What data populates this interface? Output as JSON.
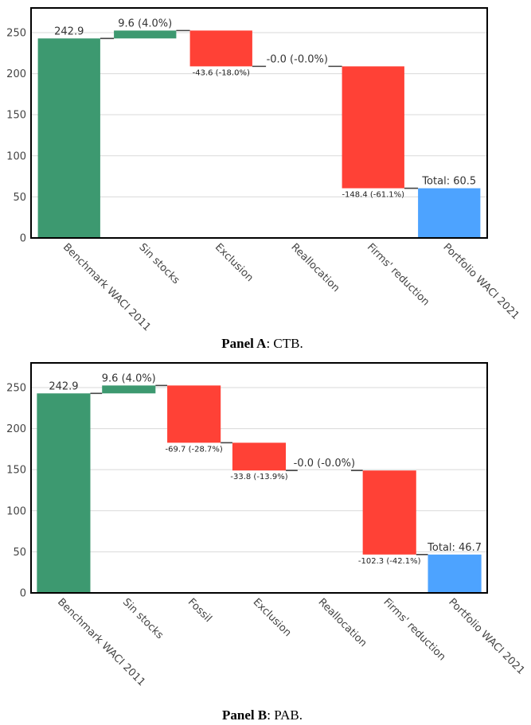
{
  "chart_data": [
    {
      "type": "waterfall",
      "panel_label": "Panel A",
      "panel_name": "CTB.",
      "ylim": [
        0,
        280
      ],
      "yticks": [
        0,
        50,
        100,
        150,
        200,
        250
      ],
      "grid": true,
      "bars": [
        {
          "category": "Benchmark WACI 2011",
          "kind": "total",
          "base": 0,
          "top": 242.9,
          "label": "242.9",
          "label_pos": "above"
        },
        {
          "category": "Sin stocks",
          "kind": "increase",
          "base": 242.9,
          "top": 252.5,
          "label": "9.6 (4.0%)",
          "label_pos": "above"
        },
        {
          "category": "Exclusion",
          "kind": "decrease",
          "base": 208.9,
          "top": 252.5,
          "label": "-43.6 (-18.0%)",
          "label_pos": "below"
        },
        {
          "category": "Reallocation",
          "kind": "decrease",
          "base": 208.9,
          "top": 208.9,
          "label": "-0.0 (-0.0%)",
          "label_pos": "above"
        },
        {
          "category": "Firms' reduction",
          "kind": "decrease",
          "base": 60.5,
          "top": 208.9,
          "label": "-148.4 (-61.1%)",
          "label_pos": "below"
        },
        {
          "category": "Portfolio WACI 2021",
          "kind": "final",
          "base": 0,
          "top": 60.5,
          "label": "Total: 60.5",
          "label_pos": "above"
        }
      ]
    },
    {
      "type": "waterfall",
      "panel_label": "Panel B",
      "panel_name": "PAB.",
      "ylim": [
        0,
        280
      ],
      "yticks": [
        0,
        50,
        100,
        150,
        200,
        250
      ],
      "grid": true,
      "bars": [
        {
          "category": "Benchmark WACI 2011",
          "kind": "total",
          "base": 0,
          "top": 242.9,
          "label": "242.9",
          "label_pos": "above"
        },
        {
          "category": "Sin stocks",
          "kind": "increase",
          "base": 242.9,
          "top": 252.5,
          "label": "9.6 (4.0%)",
          "label_pos": "above"
        },
        {
          "category": "Fossil",
          "kind": "decrease",
          "base": 182.8,
          "top": 252.5,
          "label": "-69.7 (-28.7%)",
          "label_pos": "below"
        },
        {
          "category": "Exclusion",
          "kind": "decrease",
          "base": 149.0,
          "top": 182.8,
          "label": "-33.8 (-13.9%)",
          "label_pos": "below"
        },
        {
          "category": "Reallocation",
          "kind": "decrease",
          "base": 149.0,
          "top": 149.0,
          "label": "-0.0 (-0.0%)",
          "label_pos": "above"
        },
        {
          "category": "Firms' reduction",
          "kind": "decrease",
          "base": 46.7,
          "top": 149.0,
          "label": "-102.3 (-42.1%)",
          "label_pos": "below"
        },
        {
          "category": "Portfolio WACI 2021",
          "kind": "final",
          "base": 0,
          "top": 46.7,
          "label": "Total: 46.7",
          "label_pos": "above"
        }
      ]
    }
  ],
  "colors": {
    "total": "#3d9970",
    "increase": "#3d9970",
    "decrease": "#ff4136",
    "final": "#4da3ff",
    "connector": "#444444",
    "grid": "#d9d9d9",
    "frame": "#000000"
  }
}
